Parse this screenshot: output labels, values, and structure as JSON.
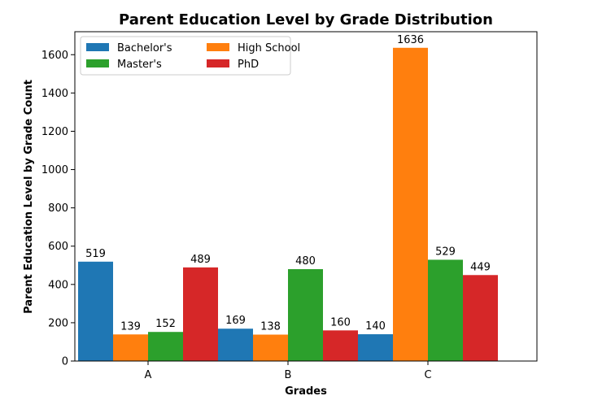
{
  "chart_data": {
    "type": "bar",
    "title": "Parent Education Level by Grade Distribution",
    "xlabel": "Grades",
    "ylabel": "Parent Education Level by Grade Count",
    "categories": [
      "A",
      "B",
      "C"
    ],
    "series": [
      {
        "name": "Bachelor's",
        "color": "#1f77b4",
        "values": [
          519,
          169,
          140
        ]
      },
      {
        "name": "High School",
        "color": "#ff7f0e",
        "values": [
          139,
          138,
          1636
        ]
      },
      {
        "name": "Master's",
        "color": "#2ca02c",
        "values": [
          152,
          480,
          529
        ]
      },
      {
        "name": "PhD",
        "color": "#d62728",
        "values": [
          489,
          160,
          449
        ]
      }
    ],
    "ylim": [
      0,
      1720
    ],
    "yticks": [
      0,
      200,
      400,
      600,
      800,
      1000,
      1200,
      1400,
      1600
    ],
    "legend_position": "top-left",
    "legend_columns": 2,
    "grid": false
  }
}
